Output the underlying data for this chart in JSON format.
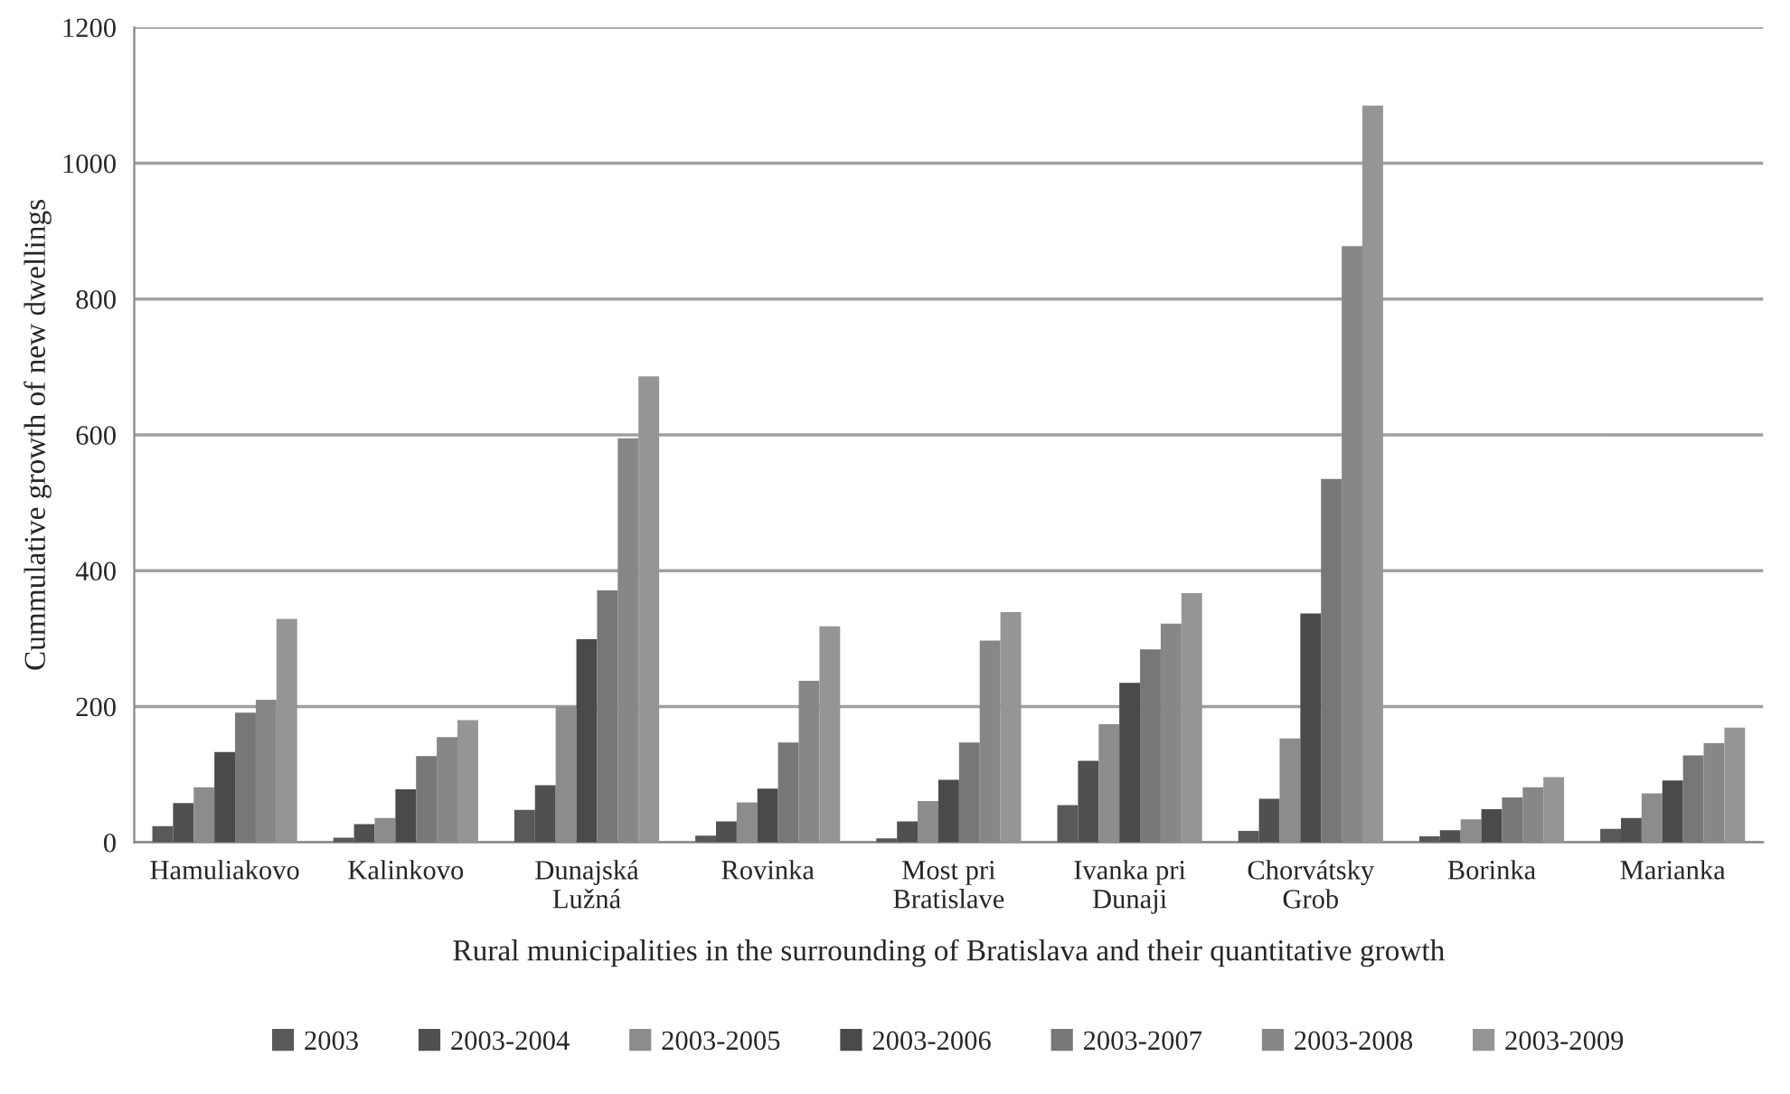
{
  "chart_data": {
    "type": "bar",
    "xlabel": "Rural municipalities in the surrounding of Bratislava and their quantitative growth",
    "ylabel": "Cummulative growth of new dwellings",
    "categories": [
      "Hamuliakovo",
      "Kalinkovo",
      "Dunajská\nLužná",
      "Rovinka",
      "Most pri\nBratislave",
      "Ivanka pri\nDunaji",
      "Chorvátsky\nGrob",
      "Borinka",
      "Marianka"
    ],
    "series": [
      {
        "name": "2003",
        "color": "#595959",
        "values": [
          24,
          7,
          48,
          10,
          6,
          55,
          17,
          9,
          20
        ]
      },
      {
        "name": "2003-2004",
        "color": "#505050",
        "values": [
          58,
          27,
          84,
          31,
          31,
          120,
          64,
          18,
          36
        ]
      },
      {
        "name": "2003-2005",
        "color": "#8c8c8c",
        "values": [
          81,
          36,
          200,
          59,
          61,
          174,
          153,
          34,
          72
        ]
      },
      {
        "name": "2003-2006",
        "color": "#4a4a4a",
        "values": [
          133,
          78,
          299,
          79,
          92,
          235,
          337,
          49,
          91
        ]
      },
      {
        "name": "2003-2007",
        "color": "#777777",
        "values": [
          191,
          127,
          371,
          147,
          147,
          284,
          535,
          66,
          128
        ]
      },
      {
        "name": "2003-2008",
        "color": "#878787",
        "values": [
          210,
          155,
          595,
          238,
          297,
          322,
          878,
          81,
          146
        ]
      },
      {
        "name": "2003-2009",
        "color": "#959595",
        "values": [
          329,
          180,
          686,
          318,
          339,
          367,
          1085,
          96,
          169
        ]
      }
    ],
    "ylim": [
      0,
      1200
    ],
    "yticks": [
      0,
      200,
      400,
      600,
      800,
      1000,
      1200
    ],
    "grid": "y",
    "legend": "bottom"
  }
}
